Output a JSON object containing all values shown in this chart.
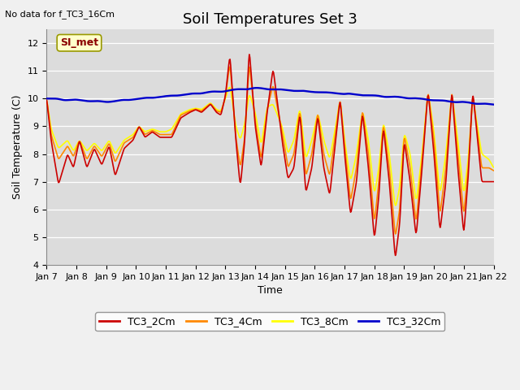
{
  "title": "Soil Temperatures Set 3",
  "subtitle": "No data for f_TC3_16Cm",
  "xlabel": "Time",
  "ylabel": "Soil Temperature (C)",
  "ylim": [
    4.0,
    12.5
  ],
  "yticks": [
    4.0,
    5.0,
    6.0,
    7.0,
    8.0,
    9.0,
    10.0,
    11.0,
    12.0
  ],
  "xtick_labels": [
    "Jan 7",
    "Jan 8",
    "Jan 9",
    "Jan 10",
    "Jan 11",
    "Jan 12",
    "Jan 13",
    "Jan 14",
    "Jan 15",
    "Jan 16",
    "Jan 17",
    "Jan 18",
    "Jan 19",
    "Jan 20",
    "Jan 21",
    "Jan 22"
  ],
  "color_2cm": "#cc0000",
  "color_4cm": "#ff8800",
  "color_8cm": "#ffff00",
  "color_32cm": "#0000cc",
  "annotation_text": "SI_met",
  "bg_color": "#dcdcdc",
  "line_width": 1.2,
  "title_fontsize": 13,
  "label_fontsize": 9,
  "tick_fontsize": 8
}
